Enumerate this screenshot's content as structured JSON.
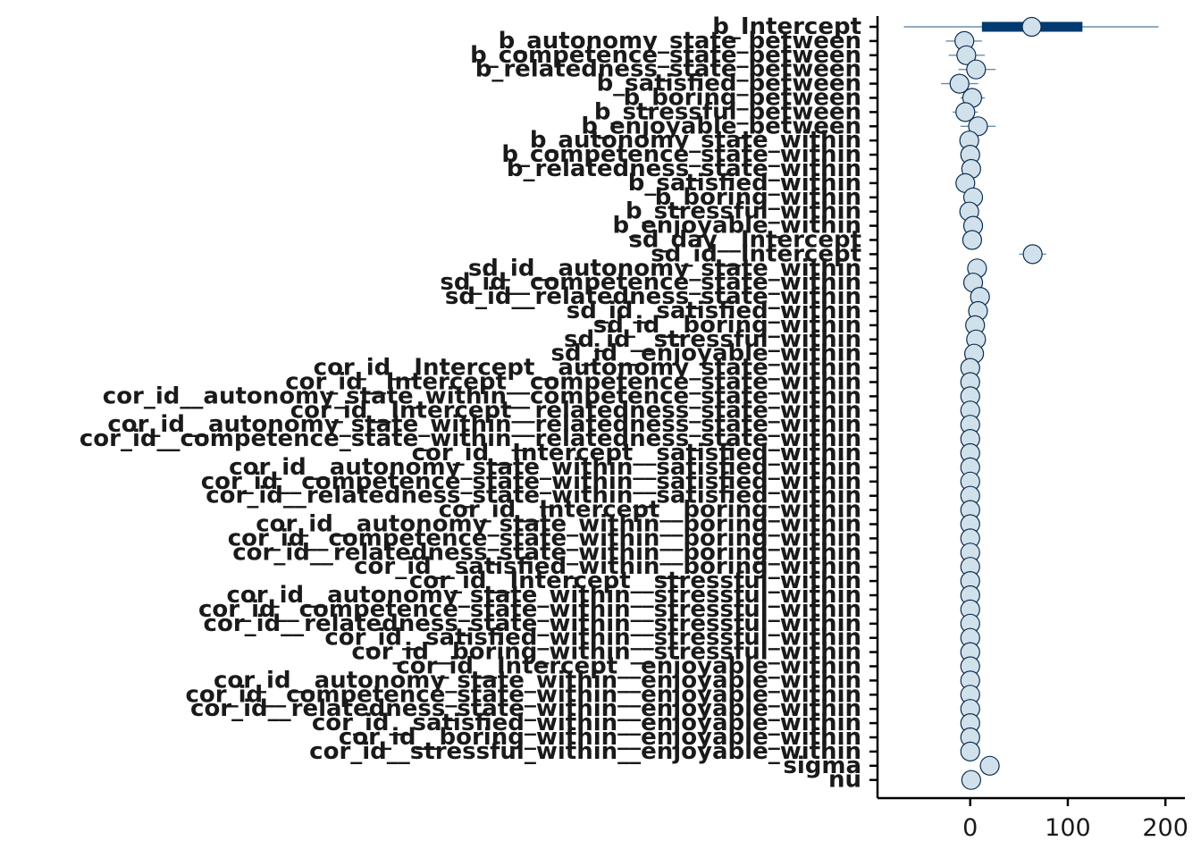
{
  "colors": {
    "outer_interval": "#6b8eaa",
    "inner_interval": "#003a70",
    "point_fill": "#d1e1ec",
    "point_stroke": "#0b2d4f"
  },
  "chart_data": {
    "type": "interval",
    "title": "",
    "xlabel": "",
    "ylabel": "",
    "xlim": [
      -95,
      220
    ],
    "x_ticks": [
      0,
      100,
      200
    ],
    "grid": false,
    "legend": "none",
    "parameters": [
      {
        "name": "b_Intercept",
        "estimate": 63,
        "inner": [
          12,
          115
        ],
        "outer": [
          -68,
          193
        ]
      },
      {
        "name": "b_autonomy_state_between",
        "estimate": -6,
        "inner": [
          -12,
          2
        ],
        "outer": [
          -25,
          12
        ]
      },
      {
        "name": "b_competence_state_between",
        "estimate": -4,
        "inner": [
          -11,
          3
        ],
        "outer": [
          -22,
          15
        ]
      },
      {
        "name": "b_relatedness_state_between",
        "estimate": 6,
        "inner": [
          -1,
          13
        ],
        "outer": [
          -12,
          26
        ]
      },
      {
        "name": "b_satisfied_between",
        "estimate": -11,
        "inner": [
          -18,
          -4
        ],
        "outer": [
          -30,
          8
        ]
      },
      {
        "name": "b_boring_between",
        "estimate": 2,
        "inner": [
          -3,
          8
        ],
        "outer": [
          -10,
          15
        ]
      },
      {
        "name": "b_stressful_between",
        "estimate": -5,
        "inner": [
          -10,
          1
        ],
        "outer": [
          -18,
          8
        ]
      },
      {
        "name": "b_enjoyable_between",
        "estimate": 8,
        "inner": [
          2,
          14
        ],
        "outer": [
          -10,
          26
        ]
      },
      {
        "name": "b_autonomy_state_within",
        "estimate": -1,
        "inner": [
          -3,
          1
        ],
        "outer": [
          -6,
          4
        ]
      },
      {
        "name": "b_competence_state_within",
        "estimate": 0,
        "inner": [
          -2,
          2
        ],
        "outer": [
          -5,
          5
        ]
      },
      {
        "name": "b_relatedness_state_within",
        "estimate": 1,
        "inner": [
          -1,
          3
        ],
        "outer": [
          -4,
          6
        ]
      },
      {
        "name": "b_satisfied_within",
        "estimate": -5,
        "inner": [
          -7,
          -3
        ],
        "outer": [
          -10,
          0
        ]
      },
      {
        "name": "b_boring_within",
        "estimate": 3,
        "inner": [
          1,
          5
        ],
        "outer": [
          -2,
          8
        ]
      },
      {
        "name": "b_stressful_within",
        "estimate": -1,
        "inner": [
          -3,
          1
        ],
        "outer": [
          -6,
          4
        ]
      },
      {
        "name": "b_enjoyable_within",
        "estimate": 3,
        "inner": [
          1,
          5
        ],
        "outer": [
          -2,
          8
        ]
      },
      {
        "name": "sd_day__Intercept",
        "estimate": 2,
        "inner": [
          0,
          4
        ],
        "outer": [
          -2,
          7
        ]
      },
      {
        "name": "sd_id__Intercept",
        "estimate": 64,
        "inner": [
          58,
          70
        ],
        "outer": [
          50,
          78
        ]
      },
      {
        "name": "sd_id__autonomy_state_within",
        "estimate": 7,
        "inner": [
          5,
          9
        ],
        "outer": [
          3,
          11
        ]
      },
      {
        "name": "sd_id__competence_state_within",
        "estimate": 3,
        "inner": [
          1,
          5
        ],
        "outer": [
          0,
          7
        ]
      },
      {
        "name": "sd_id__relatedness_state_within",
        "estimate": 10,
        "inner": [
          7,
          13
        ],
        "outer": [
          4,
          16
        ]
      },
      {
        "name": "sd_id__satisfied_within",
        "estimate": 8,
        "inner": [
          6,
          10
        ],
        "outer": [
          4,
          12
        ]
      },
      {
        "name": "sd_id__boring_within",
        "estimate": 5,
        "inner": [
          3,
          7
        ],
        "outer": [
          2,
          9
        ]
      },
      {
        "name": "sd_id__stressful_within",
        "estimate": 6,
        "inner": [
          4,
          8
        ],
        "outer": [
          3,
          10
        ]
      },
      {
        "name": "sd_id__enjoyable_within",
        "estimate": 4,
        "inner": [
          2,
          6
        ],
        "outer": [
          1,
          8
        ]
      },
      {
        "name": "cor_id__Intercept__autonomy_state_within",
        "estimate": 0,
        "inner": [
          -1,
          1
        ],
        "outer": [
          -2,
          2
        ]
      },
      {
        "name": "cor_id__Intercept__competence_state_within",
        "estimate": 0,
        "inner": [
          -1,
          1
        ],
        "outer": [
          -2,
          2
        ]
      },
      {
        "name": "cor_id__autonomy_state_within__competence_state_within",
        "estimate": 0,
        "inner": [
          -1,
          1
        ],
        "outer": [
          -2,
          2
        ]
      },
      {
        "name": "cor_id__Intercept__relatedness_state_within",
        "estimate": 0,
        "inner": [
          -1,
          1
        ],
        "outer": [
          -2,
          2
        ]
      },
      {
        "name": "cor_id__autonomy_state_within__relatedness_state_within",
        "estimate": 0,
        "inner": [
          -1,
          1
        ],
        "outer": [
          -2,
          2
        ]
      },
      {
        "name": "cor_id__competence_state_within__relatedness_state_within",
        "estimate": 0,
        "inner": [
          -1,
          1
        ],
        "outer": [
          -2,
          2
        ]
      },
      {
        "name": "cor_id__Intercept__satisfied_within",
        "estimate": 0,
        "inner": [
          -1,
          1
        ],
        "outer": [
          -2,
          2
        ]
      },
      {
        "name": "cor_id__autonomy_state_within__satisfied_within",
        "estimate": 0,
        "inner": [
          -1,
          1
        ],
        "outer": [
          -2,
          2
        ]
      },
      {
        "name": "cor_id__competence_state_within__satisfied_within",
        "estimate": 0,
        "inner": [
          -1,
          1
        ],
        "outer": [
          -2,
          2
        ]
      },
      {
        "name": "cor_id__relatedness_state_within__satisfied_within",
        "estimate": 0,
        "inner": [
          -1,
          1
        ],
        "outer": [
          -2,
          2
        ]
      },
      {
        "name": "cor_id__Intercept__boring_within",
        "estimate": 0,
        "inner": [
          -1,
          1
        ],
        "outer": [
          -2,
          2
        ]
      },
      {
        "name": "cor_id__autonomy_state_within__boring_within",
        "estimate": 0,
        "inner": [
          -1,
          1
        ],
        "outer": [
          -2,
          2
        ]
      },
      {
        "name": "cor_id__competence_state_within__boring_within",
        "estimate": 0,
        "inner": [
          -1,
          1
        ],
        "outer": [
          -2,
          2
        ]
      },
      {
        "name": "cor_id__relatedness_state_within__boring_within",
        "estimate": 0,
        "inner": [
          -1,
          1
        ],
        "outer": [
          -2,
          2
        ]
      },
      {
        "name": "cor_id__satisfied_within__boring_within",
        "estimate": 0,
        "inner": [
          -1,
          1
        ],
        "outer": [
          -2,
          2
        ]
      },
      {
        "name": "cor_id__Intercept__stressful_within",
        "estimate": 0,
        "inner": [
          -1,
          1
        ],
        "outer": [
          -2,
          2
        ]
      },
      {
        "name": "cor_id__autonomy_state_within__stressful_within",
        "estimate": 0,
        "inner": [
          -1,
          1
        ],
        "outer": [
          -2,
          2
        ]
      },
      {
        "name": "cor_id__competence_state_within__stressful_within",
        "estimate": 0,
        "inner": [
          -1,
          1
        ],
        "outer": [
          -2,
          2
        ]
      },
      {
        "name": "cor_id__relatedness_state_within__stressful_within",
        "estimate": 0,
        "inner": [
          -1,
          1
        ],
        "outer": [
          -2,
          2
        ]
      },
      {
        "name": "cor_id__satisfied_within__stressful_within",
        "estimate": 0,
        "inner": [
          -1,
          1
        ],
        "outer": [
          -2,
          2
        ]
      },
      {
        "name": "cor_id__boring_within__stressful_within",
        "estimate": 0,
        "inner": [
          -1,
          1
        ],
        "outer": [
          -2,
          2
        ]
      },
      {
        "name": "cor_id__Intercept__enjoyable_within",
        "estimate": 0,
        "inner": [
          -1,
          1
        ],
        "outer": [
          -2,
          2
        ]
      },
      {
        "name": "cor_id__autonomy_state_within__enjoyable_within",
        "estimate": 0,
        "inner": [
          -1,
          1
        ],
        "outer": [
          -2,
          2
        ]
      },
      {
        "name": "cor_id__competence_state_within__enjoyable_within",
        "estimate": 0,
        "inner": [
          -1,
          1
        ],
        "outer": [
          -2,
          2
        ]
      },
      {
        "name": "cor_id__relatedness_state_within__enjoyable_within",
        "estimate": 0,
        "inner": [
          -1,
          1
        ],
        "outer": [
          -2,
          2
        ]
      },
      {
        "name": "cor_id__satisfied_within__enjoyable_within",
        "estimate": 0,
        "inner": [
          -1,
          1
        ],
        "outer": [
          -2,
          2
        ]
      },
      {
        "name": "cor_id__boring_within__enjoyable_within",
        "estimate": 0,
        "inner": [
          -1,
          1
        ],
        "outer": [
          -2,
          2
        ]
      },
      {
        "name": "cor_id__stressful_within__enjoyable_within",
        "estimate": 0,
        "inner": [
          -1,
          1
        ],
        "outer": [
          -2,
          2
        ]
      },
      {
        "name": "sigma",
        "estimate": 20,
        "inner": [
          18,
          22
        ],
        "outer": [
          16,
          24
        ]
      },
      {
        "name": "nu",
        "estimate": 1,
        "inner": [
          0,
          2
        ],
        "outer": [
          -1,
          3
        ]
      }
    ]
  }
}
